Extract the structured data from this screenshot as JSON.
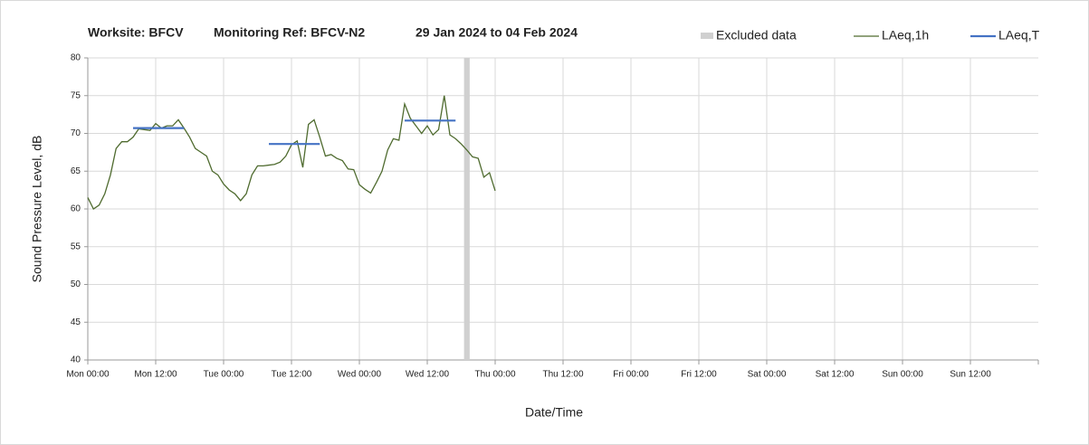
{
  "chart_data": {
    "type": "line",
    "title": [
      "Worksite: BFCV",
      "Monitoring Ref: BFCV-N2",
      "29 Jan 2024 to 04 Feb 2024"
    ],
    "xlabel": "Date/Time",
    "ylabel": "Sound Pressure Level, dB",
    "xlim": [
      0,
      168
    ],
    "ylim": [
      40,
      80
    ],
    "yticks": [
      40,
      45,
      50,
      55,
      60,
      65,
      70,
      75,
      80
    ],
    "xticks": [
      {
        "value": 0,
        "label": "Mon 00:00"
      },
      {
        "value": 12,
        "label": "Mon 12:00"
      },
      {
        "value": 24,
        "label": "Tue 00:00"
      },
      {
        "value": 36,
        "label": "Tue 12:00"
      },
      {
        "value": 48,
        "label": "Wed 00:00"
      },
      {
        "value": 60,
        "label": "Wed 12:00"
      },
      {
        "value": 72,
        "label": "Thu 00:00"
      },
      {
        "value": 84,
        "label": "Thu 12:00"
      },
      {
        "value": 96,
        "label": "Fri 00:00"
      },
      {
        "value": 108,
        "label": "Fri 12:00"
      },
      {
        "value": 120,
        "label": "Sat 00:00"
      },
      {
        "value": 132,
        "label": "Sat 12:00"
      },
      {
        "value": 144,
        "label": "Sun 00:00"
      },
      {
        "value": 156,
        "label": "Sun 12:00"
      }
    ],
    "grid": true,
    "excluded": {
      "name": "Excluded data",
      "color": "#d0d0d0",
      "start": 66.5,
      "end": 67.5
    },
    "x": [
      0,
      1,
      2,
      3,
      4,
      5,
      6,
      7,
      8,
      9,
      10,
      11,
      12,
      13,
      14,
      15,
      16,
      17,
      18,
      19,
      20,
      21,
      22,
      23,
      24,
      25,
      26,
      27,
      28,
      29,
      30,
      31,
      32,
      33,
      34,
      35,
      36,
      37,
      38,
      39,
      40,
      41,
      42,
      43,
      44,
      45,
      46,
      47,
      48,
      49,
      50,
      51,
      52,
      53,
      54,
      55,
      56,
      57,
      58,
      59,
      60,
      61,
      62,
      63,
      64,
      65,
      66,
      67,
      68,
      69,
      70,
      71,
      72
    ],
    "series": [
      {
        "name": "LAeq,1h",
        "color": "#4f6b2f",
        "values": [
          61.5,
          60.0,
          60.5,
          62.0,
          64.5,
          68.0,
          68.9,
          68.9,
          69.5,
          70.6,
          70.5,
          70.4,
          71.3,
          70.7,
          71.0,
          71.0,
          71.8,
          70.7,
          69.5,
          68.0,
          67.5,
          67.0,
          65.0,
          64.5,
          63.3,
          62.5,
          62.0,
          61.1,
          62.0,
          64.5,
          65.7,
          65.7,
          65.8,
          65.9,
          66.2,
          67.0,
          68.5,
          69.0,
          65.5,
          71.2,
          71.8,
          69.5,
          67.0,
          67.2,
          66.7,
          66.4,
          65.3,
          65.2,
          63.2,
          62.6,
          62.1,
          63.5,
          65.0,
          67.8,
          69.3,
          69.1,
          73.9,
          72.0,
          71.0,
          70.0,
          71.0,
          69.8,
          70.5,
          75.0,
          69.8,
          69.3,
          68.6,
          67.8,
          66.9,
          66.7,
          64.2,
          64.8,
          62.4
        ]
      },
      {
        "name": "LAeq,T",
        "color": "#4472c4",
        "segments": [
          {
            "start": 8,
            "end": 17,
            "value": 70.7
          },
          {
            "start": 32,
            "end": 41,
            "value": 68.6
          },
          {
            "start": 56,
            "end": 65,
            "value": 71.7
          }
        ]
      }
    ]
  }
}
